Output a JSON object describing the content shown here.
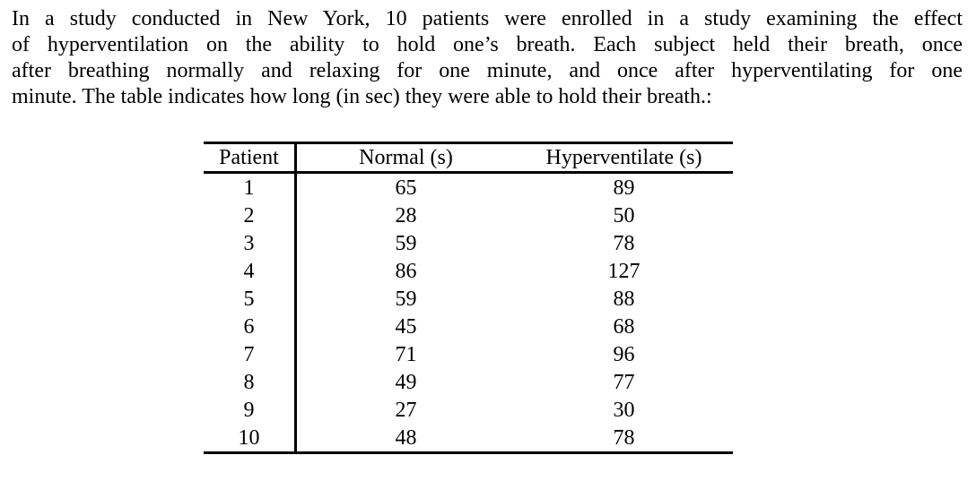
{
  "page": {
    "background_color": "#ffffff",
    "text_color": "#000000"
  },
  "paragraph": {
    "lines": [
      "In a study conducted in New York, 10 patients were enrolled in a study examining the effect",
      "of hyperventilation on the ability to hold one’s breath. Each subject held their breath, once",
      "after breathing normally and relaxing for one minute, and once after hyperventilating for one",
      "minute. The table indicates how long (in sec) they were able to hold their breath.:"
    ]
  },
  "table": {
    "columns": [
      "Patient",
      "Normal (s)",
      "Hyperventilate (s)"
    ],
    "rows": [
      {
        "patient": "1",
        "normal": "65",
        "hyperventilate": "89"
      },
      {
        "patient": "2",
        "normal": "28",
        "hyperventilate": "50"
      },
      {
        "patient": "3",
        "normal": "59",
        "hyperventilate": "78"
      },
      {
        "patient": "4",
        "normal": "86",
        "hyperventilate": "127"
      },
      {
        "patient": "5",
        "normal": "59",
        "hyperventilate": "88"
      },
      {
        "patient": "6",
        "normal": "45",
        "hyperventilate": "68"
      },
      {
        "patient": "7",
        "normal": "71",
        "hyperventilate": "96"
      },
      {
        "patient": "8",
        "normal": "49",
        "hyperventilate": "77"
      },
      {
        "patient": "9",
        "normal": "27",
        "hyperventilate": "30"
      },
      {
        "patient": "10",
        "normal": "48",
        "hyperventilate": "78"
      }
    ]
  }
}
